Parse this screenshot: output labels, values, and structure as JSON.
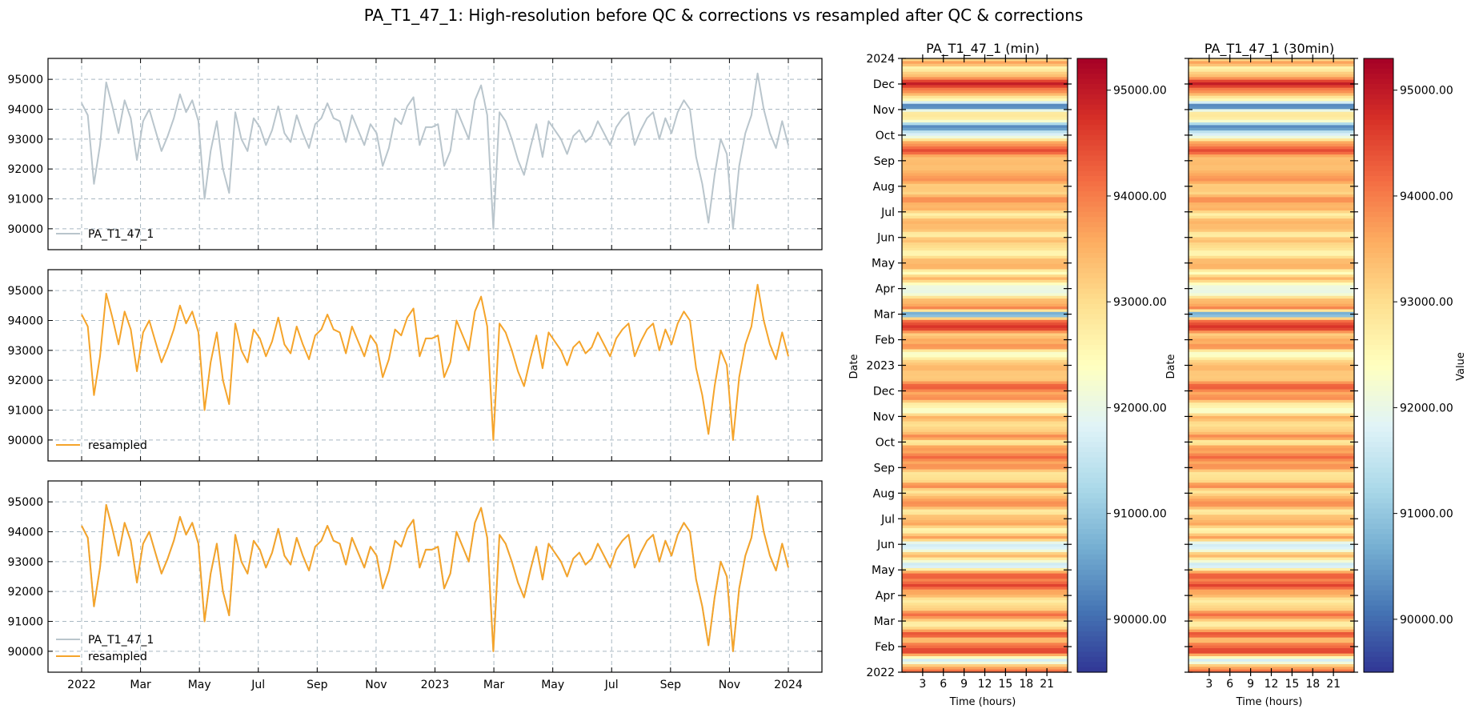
{
  "title": "PA_T1_47_1: High-resolution before QC & corrections vs resampled after QC & corrections",
  "colors": {
    "raw": "#b9c5cc",
    "resampled": "#f5a42a",
    "grid": "#a9b8c2"
  },
  "chart_data": [
    {
      "type": "line",
      "panel": "top",
      "series": [
        {
          "name": "PA_T1_47_1",
          "color": "#b9c5cc",
          "values": [
            94200,
            93800,
            91500,
            92800,
            94900,
            94100,
            93200,
            94300,
            93700,
            92300,
            93600,
            94000,
            93300,
            92600,
            93100,
            93700,
            94500,
            93900,
            94300,
            93600,
            91000,
            92600,
            93600,
            92000,
            91200,
            93900,
            93000,
            92600,
            93700,
            93400,
            92800,
            93300,
            94100,
            93200,
            92900,
            93800,
            93200,
            92700,
            93500,
            93700,
            94200,
            93700,
            93600,
            92900,
            93800,
            93300,
            92800,
            93500,
            93200,
            92100,
            92700,
            93700,
            93500,
            94100,
            94400,
            92800,
            93400,
            93400,
            93500,
            92100,
            92600,
            94000,
            93500,
            93000,
            94300,
            94800,
            93800,
            90000,
            93900,
            93600,
            93000,
            92300,
            91800,
            92700,
            93500,
            92400,
            93600,
            93300,
            93000,
            92500,
            93100,
            93300,
            92900,
            93100,
            93600,
            93200,
            92800,
            93400,
            93700,
            93900,
            92800,
            93300,
            93700,
            93900,
            93000,
            93700,
            93200,
            93900,
            94300,
            94000,
            92400,
            91500,
            90200,
            91800,
            93000,
            92500,
            90000,
            92100,
            93200,
            93800,
            95200,
            94000,
            93200,
            92700,
            93600,
            92800
          ]
        }
      ],
      "ylim": [
        89300,
        95700
      ],
      "yticks": [
        90000,
        91000,
        92000,
        93000,
        94000,
        95000
      ],
      "xticks": [
        "2022",
        "Mar",
        "May",
        "Jul",
        "Sep",
        "Nov",
        "2023",
        "Mar",
        "May",
        "Jul",
        "Sep",
        "Nov",
        "2024"
      ],
      "grid": true,
      "legend": "lower-left"
    },
    {
      "type": "line",
      "panel": "middle",
      "series": [
        {
          "name": "resampled",
          "color": "#f5a42a",
          "values": [
            94200,
            93800,
            91500,
            92800,
            94900,
            94100,
            93200,
            94300,
            93700,
            92300,
            93600,
            94000,
            93300,
            92600,
            93100,
            93700,
            94500,
            93900,
            94300,
            93600,
            91000,
            92600,
            93600,
            92000,
            91200,
            93900,
            93000,
            92600,
            93700,
            93400,
            92800,
            93300,
            94100,
            93200,
            92900,
            93800,
            93200,
            92700,
            93500,
            93700,
            94200,
            93700,
            93600,
            92900,
            93800,
            93300,
            92800,
            93500,
            93200,
            92100,
            92700,
            93700,
            93500,
            94100,
            94400,
            92800,
            93400,
            93400,
            93500,
            92100,
            92600,
            94000,
            93500,
            93000,
            94300,
            94800,
            93800,
            90000,
            93900,
            93600,
            93000,
            92300,
            91800,
            92700,
            93500,
            92400,
            93600,
            93300,
            93000,
            92500,
            93100,
            93300,
            92900,
            93100,
            93600,
            93200,
            92800,
            93400,
            93700,
            93900,
            92800,
            93300,
            93700,
            93900,
            93000,
            93700,
            93200,
            93900,
            94300,
            94000,
            92400,
            91500,
            90200,
            91800,
            93000,
            92500,
            90000,
            92100,
            93200,
            93800,
            95200,
            94000,
            93200,
            92700,
            93600,
            92800
          ]
        }
      ],
      "ylim": [
        89300,
        95700
      ],
      "yticks": [
        90000,
        91000,
        92000,
        93000,
        94000,
        95000
      ],
      "grid": true,
      "legend": "lower-left"
    },
    {
      "type": "line",
      "panel": "bottom",
      "series": [
        {
          "name": "PA_T1_47_1",
          "color": "#b9c5cc",
          "values": [
            94200,
            93800,
            91500,
            92800,
            94900,
            94100,
            93200,
            94300,
            93700,
            92300,
            93600,
            94000,
            93300,
            92600,
            93100,
            93700,
            94500,
            93900,
            94300,
            93600,
            91000,
            92600,
            93600,
            92000,
            91200,
            93900,
            93000,
            92600,
            93700,
            93400,
            92800,
            93300,
            94100,
            93200,
            92900,
            93800,
            93200,
            92700,
            93500,
            93700,
            94200,
            93700,
            93600,
            92900,
            93800,
            93300,
            92800,
            93500,
            93200,
            92100,
            92700,
            93700,
            93500,
            94100,
            94400,
            92800,
            93400,
            93400,
            93500,
            92100,
            92600,
            94000,
            93500,
            93000,
            94300,
            94800,
            93800,
            90000,
            93900,
            93600,
            93000,
            92300,
            91800,
            92700,
            93500,
            92400,
            93600,
            93300,
            93000,
            92500,
            93100,
            93300,
            92900,
            93100,
            93600,
            93200,
            92800,
            93400,
            93700,
            93900,
            92800,
            93300,
            93700,
            93900,
            93000,
            93700,
            93200,
            93900,
            94300,
            94000,
            92400,
            91500,
            90200,
            91800,
            93000,
            92500,
            90000,
            92100,
            93200,
            93800,
            95200,
            94000,
            93200,
            92700,
            93600,
            92800
          ]
        },
        {
          "name": "resampled",
          "color": "#f5a42a",
          "values": [
            94200,
            93800,
            91500,
            92800,
            94900,
            94100,
            93200,
            94300,
            93700,
            92300,
            93600,
            94000,
            93300,
            92600,
            93100,
            93700,
            94500,
            93900,
            94300,
            93600,
            91000,
            92600,
            93600,
            92000,
            91200,
            93900,
            93000,
            92600,
            93700,
            93400,
            92800,
            93300,
            94100,
            93200,
            92900,
            93800,
            93200,
            92700,
            93500,
            93700,
            94200,
            93700,
            93600,
            92900,
            93800,
            93300,
            92800,
            93500,
            93200,
            92100,
            92700,
            93700,
            93500,
            94100,
            94400,
            92800,
            93400,
            93400,
            93500,
            92100,
            92600,
            94000,
            93500,
            93000,
            94300,
            94800,
            93800,
            90000,
            93900,
            93600,
            93000,
            92300,
            91800,
            92700,
            93500,
            92400,
            93600,
            93300,
            93000,
            92500,
            93100,
            93300,
            92900,
            93100,
            93600,
            93200,
            92800,
            93400,
            93700,
            93900,
            92800,
            93300,
            93700,
            93900,
            93000,
            93700,
            93200,
            93900,
            94300,
            94000,
            92400,
            91500,
            90200,
            91800,
            93000,
            92500,
            90000,
            92100,
            93200,
            93800,
            95200,
            94000,
            93200,
            92700,
            93600,
            92800
          ]
        }
      ],
      "ylim": [
        89300,
        95700
      ],
      "yticks": [
        90000,
        91000,
        92000,
        93000,
        94000,
        95000
      ],
      "xticks": [
        "2022",
        "Mar",
        "May",
        "Jul",
        "Sep",
        "Nov",
        "2023",
        "Mar",
        "May",
        "Jul",
        "Sep",
        "Nov",
        "2024"
      ],
      "grid": true,
      "legend": "lower-left"
    },
    {
      "type": "heatmap",
      "title": "PA_T1_47_1 (min)",
      "xlabel": "Time (hours)",
      "ylabel": "Date",
      "xticks": [
        "3",
        "6",
        "9",
        "12",
        "15",
        "18",
        "21"
      ],
      "yticks": [
        "2024",
        "Dec",
        "Nov",
        "Oct",
        "Sep",
        "Aug",
        "Jul",
        "Jun",
        "May",
        "Apr",
        "Mar",
        "Feb",
        "2023",
        "Dec",
        "Nov",
        "Oct",
        "Sep",
        "Aug",
        "Jul",
        "Jun",
        "May",
        "Apr",
        "Mar",
        "Feb",
        "2022"
      ],
      "colorbar": {
        "ticks": [
          "95000.00",
          "94000.00",
          "93000.00",
          "92000.00",
          "91000.00",
          "90000.00"
        ],
        "range": [
          89500,
          95300
        ],
        "colormap": "RdYlBu_r"
      }
    },
    {
      "type": "heatmap",
      "title": "PA_T1_47_1 (30min)",
      "xlabel": "Time (hours)",
      "ylabel": "Date",
      "xticks": [
        "3",
        "6",
        "9",
        "12",
        "15",
        "18",
        "21"
      ],
      "yticks": [
        "2024",
        "Dec",
        "Nov",
        "Oct",
        "Sep",
        "Aug",
        "Jul",
        "Jun",
        "May",
        "Apr",
        "Mar",
        "Feb",
        "2023",
        "Dec",
        "Nov",
        "Oct",
        "Sep",
        "Aug",
        "Jul",
        "Jun",
        "May",
        "Apr",
        "Mar",
        "Feb",
        "2022"
      ],
      "colorbar": {
        "label": "Value",
        "ticks": [
          "95000.00",
          "94000.00",
          "93000.00",
          "92000.00",
          "91000.00",
          "90000.00"
        ],
        "range": [
          89500,
          95300
        ],
        "colormap": "RdYlBu_r"
      }
    }
  ]
}
